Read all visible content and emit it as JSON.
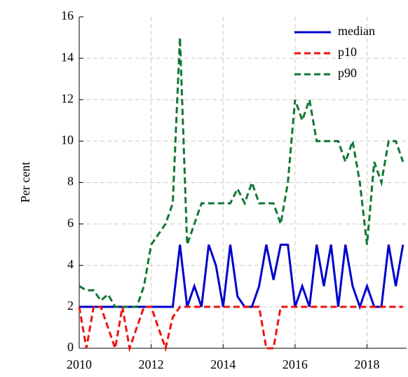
{
  "chart_data": {
    "type": "line",
    "y_label": "Per cent",
    "x": [
      2010.0,
      2010.2,
      2010.4,
      2010.6,
      2010.8,
      2011.0,
      2011.2,
      2011.4,
      2011.6,
      2011.8,
      2012.0,
      2012.2,
      2012.4,
      2012.6,
      2012.8,
      2013.0,
      2013.2,
      2013.4,
      2013.6,
      2013.8,
      2014.0,
      2014.2,
      2014.4,
      2014.6,
      2014.8,
      2015.0,
      2015.2,
      2015.4,
      2015.6,
      2015.8,
      2016.0,
      2016.2,
      2016.4,
      2016.6,
      2016.8,
      2017.0,
      2017.2,
      2017.4,
      2017.6,
      2017.8,
      2018.0,
      2018.2,
      2018.4,
      2018.6,
      2018.8,
      2019.0
    ],
    "series": [
      {
        "name": "median",
        "color": "#0000cc",
        "style": "solid",
        "values": [
          2,
          2,
          2,
          2,
          2,
          2,
          2,
          2,
          2,
          2,
          2,
          2,
          2,
          2,
          5,
          2,
          3,
          2,
          5,
          4,
          2,
          5,
          2.5,
          2,
          2,
          3,
          5,
          3.3,
          5,
          5,
          2,
          3,
          2,
          5,
          3,
          5,
          2,
          5,
          3,
          2,
          3,
          2,
          2,
          5,
          3,
          5
        ]
      },
      {
        "name": "p10",
        "color": "#ee1111",
        "style": "dashed",
        "values": [
          2,
          0,
          2,
          2,
          1,
          0,
          2,
          0,
          1,
          2,
          2,
          1,
          0,
          1.5,
          2,
          2,
          2,
          2,
          2,
          2,
          2,
          2,
          2,
          2,
          2,
          2,
          0,
          0,
          2,
          2,
          2,
          2,
          2,
          2,
          2,
          2,
          2,
          2,
          2,
          2,
          2,
          2,
          2,
          2,
          2,
          2
        ]
      },
      {
        "name": "p90",
        "color": "#117733",
        "style": "dashed",
        "values": [
          3,
          2.8,
          2.8,
          2.3,
          2.6,
          2,
          2,
          2,
          2,
          3,
          5,
          5.5,
          6,
          7,
          15,
          5,
          6,
          7,
          7,
          7,
          7,
          7,
          7.7,
          7,
          8,
          7,
          7,
          7,
          6,
          8,
          12,
          11,
          12,
          10,
          10,
          10,
          10,
          9,
          10,
          8,
          5,
          9,
          8,
          10,
          10,
          9
        ]
      }
    ],
    "xlim": [
      2010,
      2019.1
    ],
    "xticks": [
      2010,
      2012,
      2014,
      2016,
      2018
    ],
    "ylim": [
      0,
      16
    ],
    "yticks": [
      0,
      2,
      4,
      6,
      8,
      10,
      12,
      14,
      16
    ],
    "grid": true,
    "legend": "upper right"
  }
}
